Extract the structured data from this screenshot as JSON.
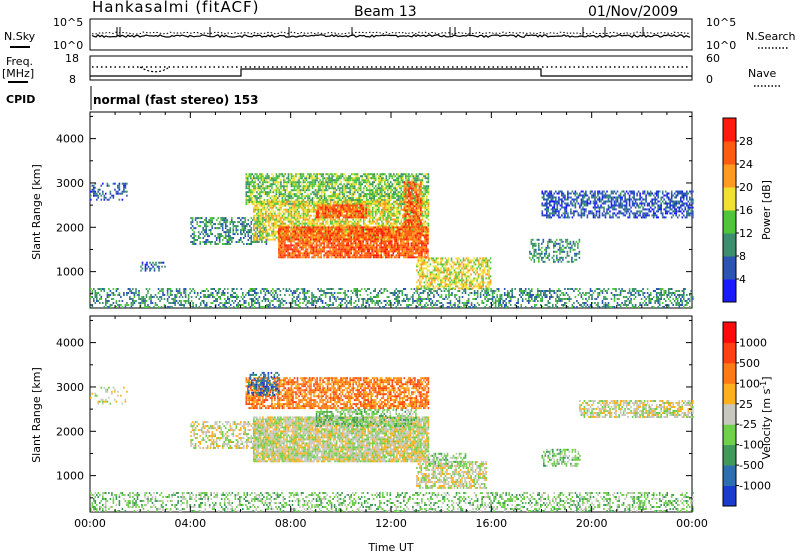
{
  "header": {
    "station": "Hankasalmi (fitACF)",
    "beam": "Beam 13",
    "date": "01/Nov/2009"
  },
  "top_panel": {
    "left_label": "N.Sky",
    "right_label": "N.Search",
    "left_ticks": [
      "10^5",
      "10^0"
    ],
    "right_ticks": [
      "10^5",
      "10^0"
    ]
  },
  "freq_panel": {
    "left_label": "Freq.",
    "left_unit": "[MHz]",
    "left_ticks": [
      "18",
      "8"
    ],
    "right_label": "Nave",
    "right_ticks": [
      "60",
      "0"
    ]
  },
  "cpid": {
    "label": "CPID",
    "value": "normal (fast stereo) 153"
  },
  "chart_data": [
    {
      "type": "heatmap",
      "quantity": "Power",
      "ylabel": "Slant Range [km]",
      "ylim": [
        180,
        4600
      ],
      "yticks": [
        1000,
        2000,
        3000,
        4000
      ],
      "colorbar_label": "Power [dB]",
      "colorbar_ticks": [
        "4",
        "8",
        "12",
        "16",
        "20",
        "24",
        "28"
      ],
      "colorbar_colors": [
        "#1a1aff",
        "#2b55b4",
        "#3c8f6e",
        "#4fc53c",
        "#f0e030",
        "#ff9a1f",
        "#ff5b10",
        "#ff1a0a"
      ],
      "regions": [
        {
          "t0": 0.0,
          "t1": 24.0,
          "r0": 180,
          "r1": 600,
          "level": 2,
          "density": 0.4
        },
        {
          "t0": 0.0,
          "t1": 1.5,
          "r0": 2600,
          "r1": 3000,
          "level": 1,
          "density": 0.35
        },
        {
          "t0": 2.0,
          "t1": 3.0,
          "r0": 1000,
          "r1": 1200,
          "level": 1,
          "density": 0.25
        },
        {
          "t0": 4.0,
          "t1": 7.0,
          "r0": 1600,
          "r1": 2200,
          "level": 2,
          "density": 0.45
        },
        {
          "t0": 6.2,
          "t1": 13.5,
          "r0": 2500,
          "r1": 3200,
          "level": 3,
          "density": 0.7
        },
        {
          "t0": 6.5,
          "t1": 13.5,
          "r0": 1700,
          "r1": 2600,
          "level": 4,
          "density": 0.75
        },
        {
          "t0": 7.5,
          "t1": 13.5,
          "r0": 1300,
          "r1": 2000,
          "level": 6,
          "density": 0.85
        },
        {
          "t0": 9.0,
          "t1": 11.0,
          "r0": 2200,
          "r1": 2500,
          "level": 6,
          "density": 0.8
        },
        {
          "t0": 12.5,
          "t1": 13.2,
          "r0": 2000,
          "r1": 3000,
          "level": 6,
          "density": 0.7
        },
        {
          "t0": 13.0,
          "t1": 16.0,
          "r0": 600,
          "r1": 1300,
          "level": 4,
          "density": 0.6
        },
        {
          "t0": 17.5,
          "t1": 19.5,
          "r0": 1200,
          "r1": 1700,
          "level": 2,
          "density": 0.45
        },
        {
          "t0": 18.0,
          "t1": 24.0,
          "r0": 2200,
          "r1": 2800,
          "level": 1,
          "density": 0.55
        }
      ]
    },
    {
      "type": "heatmap",
      "quantity": "Velocity",
      "ylabel": "Slant Range [km]",
      "ylim": [
        180,
        4600
      ],
      "yticks": [
        1000,
        2000,
        3000,
        4000
      ],
      "xlabel": "Time UT",
      "xticks": [
        "00:00",
        "04:00",
        "08:00",
        "12:00",
        "16:00",
        "20:00",
        "00:00"
      ],
      "colorbar_label": "Velocity [m s^-1]",
      "colorbar_ticks": [
        "1000",
        "500",
        "100",
        "25",
        "-25",
        "-100",
        "-500",
        "-1000"
      ],
      "colorbar_colors": [
        "#1a3bd0",
        "#2d6eb0",
        "#3f9a5a",
        "#6fd04a",
        "#c8c8c0",
        "#ffb01a",
        "#ff7a15",
        "#ff4010",
        "#ff0a0a"
      ],
      "regions": [
        {
          "t0": 0.0,
          "t1": 24.0,
          "r0": 180,
          "r1": 600,
          "level": 3,
          "density": 0.35
        },
        {
          "t0": 0.0,
          "t1": 1.5,
          "r0": 2600,
          "r1": 3000,
          "level": 4,
          "density": 0.2
        },
        {
          "t0": 4.0,
          "t1": 7.0,
          "r0": 1600,
          "r1": 2200,
          "level": 4,
          "density": 0.5
        },
        {
          "t0": 6.5,
          "t1": 13.5,
          "r0": 1300,
          "r1": 2300,
          "level": 4,
          "density": 0.9
        },
        {
          "t0": 6.2,
          "t1": 13.5,
          "r0": 2500,
          "r1": 3200,
          "level": 6,
          "density": 0.7
        },
        {
          "t0": 6.3,
          "t1": 7.5,
          "r0": 2800,
          "r1": 3300,
          "level": 1,
          "density": 0.5
        },
        {
          "t0": 9.0,
          "t1": 13.0,
          "r0": 2100,
          "r1": 2500,
          "level": 3,
          "density": 0.55
        },
        {
          "t0": 13.0,
          "t1": 15.8,
          "r0": 700,
          "r1": 1300,
          "level": 4,
          "density": 0.6
        },
        {
          "t0": 13.5,
          "t1": 15.0,
          "r0": 1200,
          "r1": 1500,
          "level": 3,
          "density": 0.5
        },
        {
          "t0": 18.0,
          "t1": 19.5,
          "r0": 1200,
          "r1": 1600,
          "level": 3,
          "density": 0.5
        },
        {
          "t0": 19.5,
          "t1": 24.0,
          "r0": 2300,
          "r1": 2700,
          "level": 4,
          "density": 0.6
        }
      ]
    }
  ]
}
